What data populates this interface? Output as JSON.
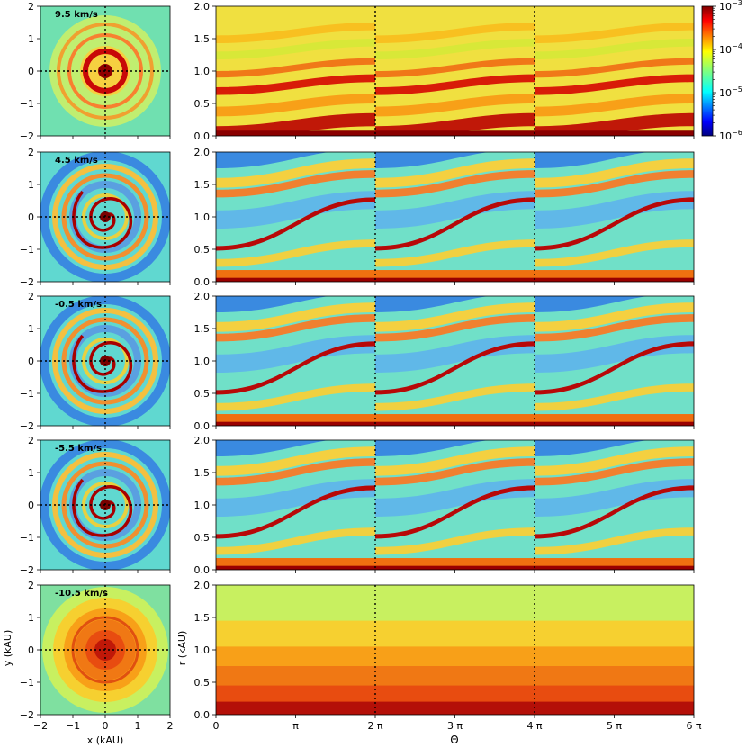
{
  "chart_data": {
    "type": "heatmap",
    "left_xlabel": "x (kAU)",
    "left_ylabel": "y (kAU)",
    "right_xlabel": "Θ",
    "right_ylabel": "r (kAU)",
    "left_xticks": [
      "−2",
      "−1",
      "0",
      "1",
      "2"
    ],
    "left_yticks": [
      "−2",
      "−1",
      "0",
      "1",
      "2"
    ],
    "right_xticks": [
      "0",
      "π",
      "2 π",
      "3 π",
      "4 π",
      "5 π",
      "6 π"
    ],
    "right_yticks": [
      "0.0",
      "0.5",
      "1.0",
      "1.5",
      "2.0"
    ],
    "colorbar": {
      "scale": "log",
      "range": [
        1e-06,
        0.001
      ],
      "ticks": [
        {
          "base": "10",
          "exp": "−6",
          "value": 1e-06
        },
        {
          "base": "10",
          "exp": "−5",
          "value": 1e-05
        },
        {
          "base": "10",
          "exp": "−4",
          "value": 0.0001
        },
        {
          "base": "10",
          "exp": "−3",
          "value": 0.001
        }
      ],
      "colormap": "jet"
    },
    "xlim_left": [
      -2,
      2
    ],
    "ylim_left": [
      -2,
      2
    ],
    "xlim_right": [
      0,
      6
    ],
    "ylim_right": [
      0,
      2
    ],
    "dotted_guides_theta_pi": [
      2,
      4
    ],
    "panels": [
      {
        "label": "9.5 km/s",
        "style": "inner"
      },
      {
        "label": "4.5 km/s",
        "style": "spiral"
      },
      {
        "label": "-0.5 km/s",
        "style": "spiral"
      },
      {
        "label": "-5.5 km/s",
        "style": "spiral"
      },
      {
        "label": "-10.5 km/s",
        "style": "disk"
      }
    ]
  }
}
